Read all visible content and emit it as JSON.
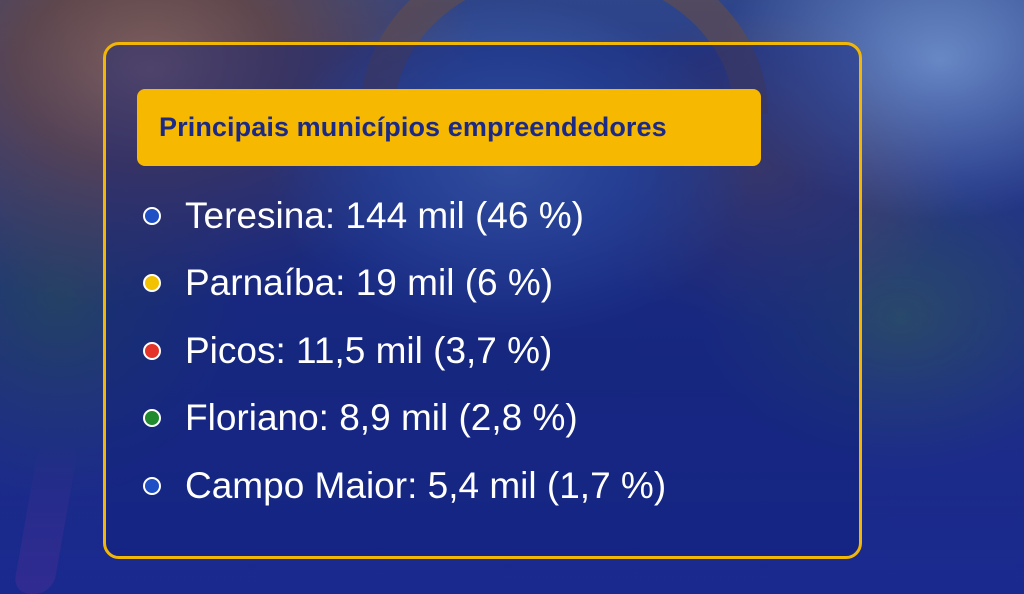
{
  "title": "Principais municípios empreendedores",
  "colors": {
    "accent": "#f6b800",
    "title_text": "#1b2a86",
    "frame": "#f2b705"
  },
  "items": [
    {
      "label": "Teresina: 144 mil (46 %)",
      "dot_color": "#1f4fc4"
    },
    {
      "label": "Parnaíba: 19 mil (6 %)",
      "dot_color": "#f2c200"
    },
    {
      "label": "Picos: 11,5 mil (3,7 %)",
      "dot_color": "#e4342a"
    },
    {
      "label": "Floriano: 8,9 mil (2,8 %)",
      "dot_color": "#1f8a2e"
    },
    {
      "label": "Campo Maior: 5,4 mil (1,7 %)",
      "dot_color": "#1f4fc4"
    }
  ]
}
